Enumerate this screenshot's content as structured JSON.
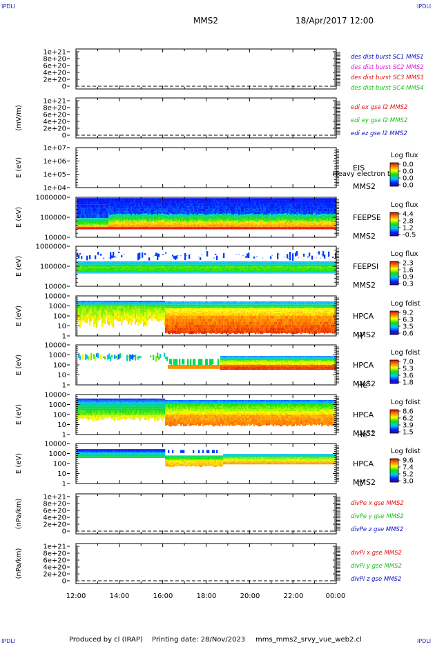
{
  "header": {
    "corner_left": "IPDLI",
    "corner_right": "IPDLI",
    "spacecraft": "MMS2",
    "date": "18/Apr/2017 12:00"
  },
  "footer": {
    "corner_left": "IPDLI",
    "corner_right": "IPDLI",
    "producer": "Produced by cl (IRAP)",
    "printing_date": "Printing date: 28/Nov/2023",
    "script_name": "mms_mms2_srvy_vue_web2.cl"
  },
  "time_axis": {
    "tick_labels": [
      "12:00",
      "14:00",
      "16:00",
      "18:00",
      "20:00",
      "22:00",
      "00:00"
    ],
    "range_hours": [
      12,
      24
    ]
  },
  "chart_data": [
    {
      "id": "des-dist",
      "type": "line",
      "ylabel": "",
      "yticks": [
        "1e+21",
        "8e+20",
        "6e+20",
        "4e+20",
        "2e+20",
        "0"
      ],
      "legend": [
        {
          "name": "des dist burst SC1 MMS1",
          "color": "#1010c8"
        },
        {
          "name": "des dist burst SC2 MMS2",
          "color": "#e020e0"
        },
        {
          "name": "des dist burst SC3 MMS3",
          "color": "#e01010"
        },
        {
          "name": "des dist burst SC4 MMS4",
          "color": "#10c810"
        }
      ],
      "zero_line": true
    },
    {
      "id": "edi-e",
      "type": "line",
      "ylabel": "(mV/m)",
      "yticks": [
        "1e+21",
        "8e+20",
        "6e+20",
        "4e+20",
        "2e+20",
        "0"
      ],
      "legend": [
        {
          "name": "edi ex gse l2 MMS2",
          "color": "#e01010"
        },
        {
          "name": "edi ey gse l2 MMS2",
          "color": "#10c810"
        },
        {
          "name": "edi ez gse l2 MMS2",
          "color": "#1010c8"
        }
      ],
      "zero_line": true
    },
    {
      "id": "eis",
      "type": "heatmap",
      "ylabel": "E (eV)",
      "yticks": [
        "1e+07",
        "1e+06",
        "1e+05",
        "1e+04"
      ],
      "labels": [
        "EIS",
        "MMS2"
      ],
      "overlay_text": "Heavy electron to",
      "colorbar": {
        "title": "Log flux",
        "ticks": [
          "0.0",
          "0.0",
          "0.0",
          "0.0"
        ]
      },
      "fill": "none"
    },
    {
      "id": "feepse",
      "type": "heatmap",
      "ylabel": "E (eV)",
      "yticks": [
        "1000000",
        "100000",
        "10000"
      ],
      "labels": [
        "FEEPSE",
        "MMS2"
      ],
      "colorbar": {
        "title": "Log flux",
        "ticks": [
          "4.4",
          "2.8",
          "1.2",
          "-0.5"
        ]
      },
      "fill": "feepse"
    },
    {
      "id": "feepsi",
      "type": "heatmap",
      "ylabel": "E (eV)",
      "yticks": [
        "1000000",
        "100000",
        "10000"
      ],
      "labels": [
        "FEEPSI",
        "MMS2"
      ],
      "colorbar": {
        "title": "Log flux",
        "ticks": [
          "2.3",
          "1.6",
          "0.9",
          "0.3"
        ]
      },
      "fill": "feepsi"
    },
    {
      "id": "hpca-h",
      "type": "heatmap",
      "ylabel": "E (eV)",
      "yticks": [
        "10000",
        "1000",
        "100",
        "10",
        "1"
      ],
      "labels": [
        "HPCA",
        "MMS2",
        "H",
        "+"
      ],
      "colorbar": {
        "title": "Log fdist",
        "ticks": [
          "9.2",
          "6.3",
          "3.5",
          "0.6"
        ]
      },
      "fill": "hpca-h"
    },
    {
      "id": "hpca-he",
      "type": "heatmap",
      "ylabel": "E (eV)",
      "yticks": [
        "10000",
        "1000",
        "100",
        "10",
        "1"
      ],
      "labels": [
        "HPCA",
        "MMS2",
        "He",
        "+"
      ],
      "colorbar": {
        "title": "Log fdist",
        "ticks": [
          "7.0",
          "5.3",
          "3.6",
          "1.8"
        ]
      },
      "fill": "hpca-he"
    },
    {
      "id": "hpca-he2",
      "type": "heatmap",
      "ylabel": "E (eV)",
      "yticks": [
        "10000",
        "1000",
        "100",
        "10",
        "1"
      ],
      "labels": [
        "HPCA",
        "MMS2",
        "He",
        "++"
      ],
      "colorbar": {
        "title": "Log fdist",
        "ticks": [
          "8.6",
          "6.2",
          "3.9",
          "1.5"
        ]
      },
      "fill": "hpca-he2"
    },
    {
      "id": "hpca-o",
      "type": "heatmap",
      "ylabel": "E (eV)",
      "yticks": [
        "10000",
        "1000",
        "100",
        "10",
        "1"
      ],
      "labels": [
        "HPCA",
        "MMS2",
        "O",
        "+"
      ],
      "colorbar": {
        "title": "Log fdist",
        "ticks": [
          "9.6",
          "7.4",
          "5.2",
          "3.0"
        ]
      },
      "fill": "hpca-o"
    },
    {
      "id": "divpe",
      "type": "line",
      "ylabel": "(nPa/km)",
      "yticks": [
        "1e+21",
        "8e+20",
        "6e+20",
        "4e+20",
        "2e+20",
        "0"
      ],
      "legend": [
        {
          "name": "divPe x gse MMS2",
          "color": "#e01010"
        },
        {
          "name": "divPe y gse MMS2",
          "color": "#10c810"
        },
        {
          "name": "divPe z gse MMS2",
          "color": "#1010c8"
        }
      ],
      "zero_line": true
    },
    {
      "id": "divpi",
      "type": "line",
      "ylabel": "(nPa/km)",
      "yticks": [
        "1e+21",
        "8e+20",
        "6e+20",
        "4e+20",
        "2e+20",
        "0"
      ],
      "legend": [
        {
          "name": "divPi x gse MMS2",
          "color": "#e01010"
        },
        {
          "name": "divPi y gse MMS2",
          "color": "#10c810"
        },
        {
          "name": "divPi z gse MMS2",
          "color": "#1010c8"
        }
      ],
      "zero_line": true
    }
  ]
}
